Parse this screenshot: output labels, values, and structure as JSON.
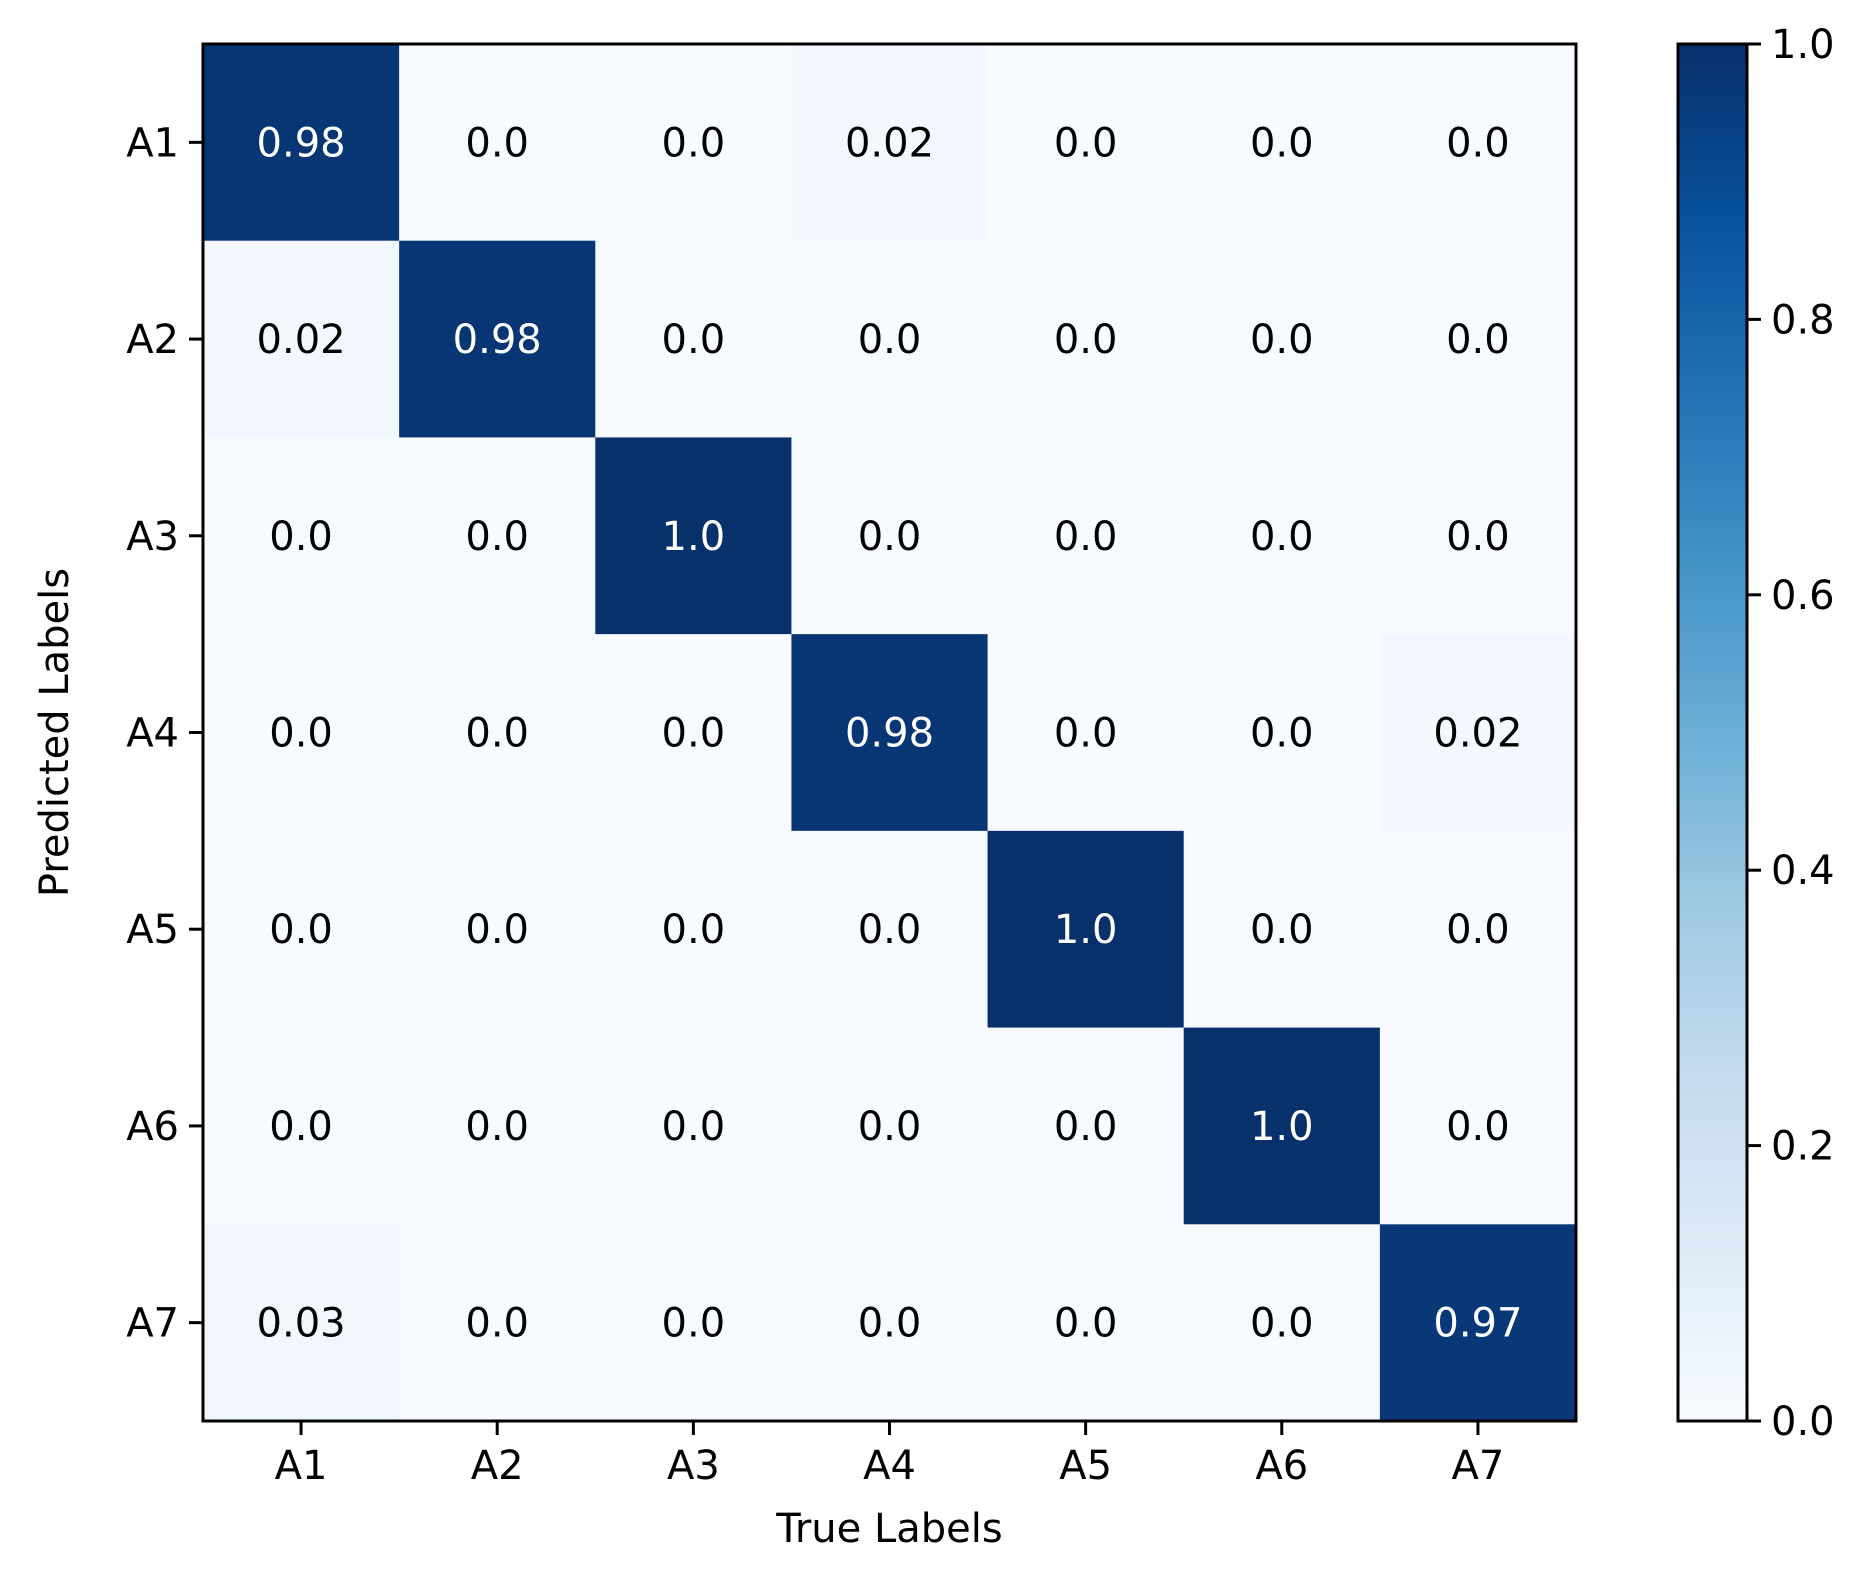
{
  "chart_data": {
    "type": "heatmap",
    "title": "",
    "xlabel": "True Labels",
    "ylabel": "Predicted Labels",
    "x_categories": [
      "A1",
      "A2",
      "A3",
      "A4",
      "A5",
      "A6",
      "A7"
    ],
    "y_categories": [
      "A1",
      "A2",
      "A3",
      "A4",
      "A5",
      "A6",
      "A7"
    ],
    "values": [
      [
        0.98,
        0.0,
        0.0,
        0.02,
        0.0,
        0.0,
        0.0
      ],
      [
        0.02,
        0.98,
        0.0,
        0.0,
        0.0,
        0.0,
        0.0
      ],
      [
        0.0,
        0.0,
        1.0,
        0.0,
        0.0,
        0.0,
        0.0
      ],
      [
        0.0,
        0.0,
        0.0,
        0.98,
        0.0,
        0.0,
        0.02
      ],
      [
        0.0,
        0.0,
        0.0,
        0.0,
        1.0,
        0.0,
        0.0
      ],
      [
        0.0,
        0.0,
        0.0,
        0.0,
        0.0,
        1.0,
        0.0
      ],
      [
        0.03,
        0.0,
        0.0,
        0.0,
        0.0,
        0.0,
        0.97
      ]
    ],
    "value_labels": [
      [
        "0.98",
        "0.0",
        "0.0",
        "0.02",
        "0.0",
        "0.0",
        "0.0"
      ],
      [
        "0.02",
        "0.98",
        "0.0",
        "0.0",
        "0.0",
        "0.0",
        "0.0"
      ],
      [
        "0.0",
        "0.0",
        "1.0",
        "0.0",
        "0.0",
        "0.0",
        "0.0"
      ],
      [
        "0.0",
        "0.0",
        "0.0",
        "0.98",
        "0.0",
        "0.0",
        "0.02"
      ],
      [
        "0.0",
        "0.0",
        "0.0",
        "0.0",
        "1.0",
        "0.0",
        "0.0"
      ],
      [
        "0.0",
        "0.0",
        "0.0",
        "0.0",
        "0.0",
        "1.0",
        "0.0"
      ],
      [
        "0.03",
        "0.0",
        "0.0",
        "0.0",
        "0.0",
        "0.0",
        "0.97"
      ]
    ],
    "colorbar": {
      "colormap": "Blues",
      "range": [
        0.0,
        1.0
      ],
      "ticks": [
        0.0,
        0.2,
        0.4,
        0.6,
        0.8,
        1.0
      ],
      "tick_labels": [
        "0.0",
        "0.2",
        "0.4",
        "0.6",
        "0.8",
        "1.0"
      ]
    },
    "grid": false,
    "legend": "none"
  }
}
